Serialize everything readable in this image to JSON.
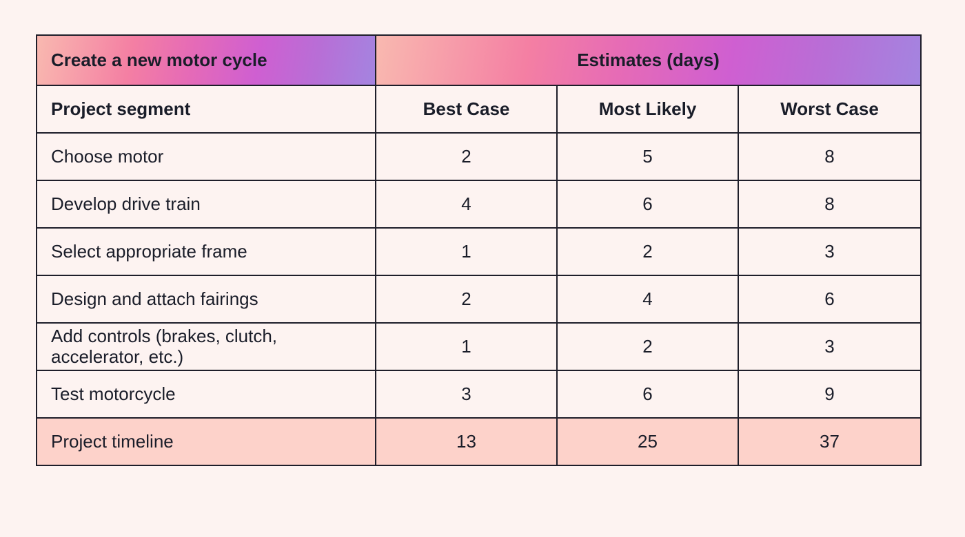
{
  "table": {
    "title": "Create a new motor cycle",
    "estimates_header": "Estimates (days)",
    "columns": {
      "segment": "Project segment",
      "best": "Best Case",
      "likely": "Most Likely",
      "worst": "Worst Case"
    },
    "rows": [
      {
        "segment": "Choose motor",
        "best": "2",
        "likely": "5",
        "worst": "8"
      },
      {
        "segment": "Develop drive train",
        "best": "4",
        "likely": "6",
        "worst": "8"
      },
      {
        "segment": "Select appropriate frame",
        "best": "1",
        "likely": "2",
        "worst": "3"
      },
      {
        "segment": "Design and attach fairings",
        "best": "2",
        "likely": "4",
        "worst": "6"
      },
      {
        "segment": "Add controls (brakes, clutch, accelerator, etc.)",
        "best": "1",
        "likely": "2",
        "worst": "3"
      },
      {
        "segment": "Test motorcycle",
        "best": "3",
        "likely": "6",
        "worst": "9"
      }
    ],
    "total": {
      "segment": "Project timeline",
      "best": "13",
      "likely": "25",
      "worst": "37"
    }
  },
  "colors": {
    "background": "#fdf3f1",
    "total_row": "#fdd2ca",
    "header_gradient_start": "#f9b9b0",
    "header_gradient_end": "#a484e0",
    "border": "#1e1e2a"
  }
}
